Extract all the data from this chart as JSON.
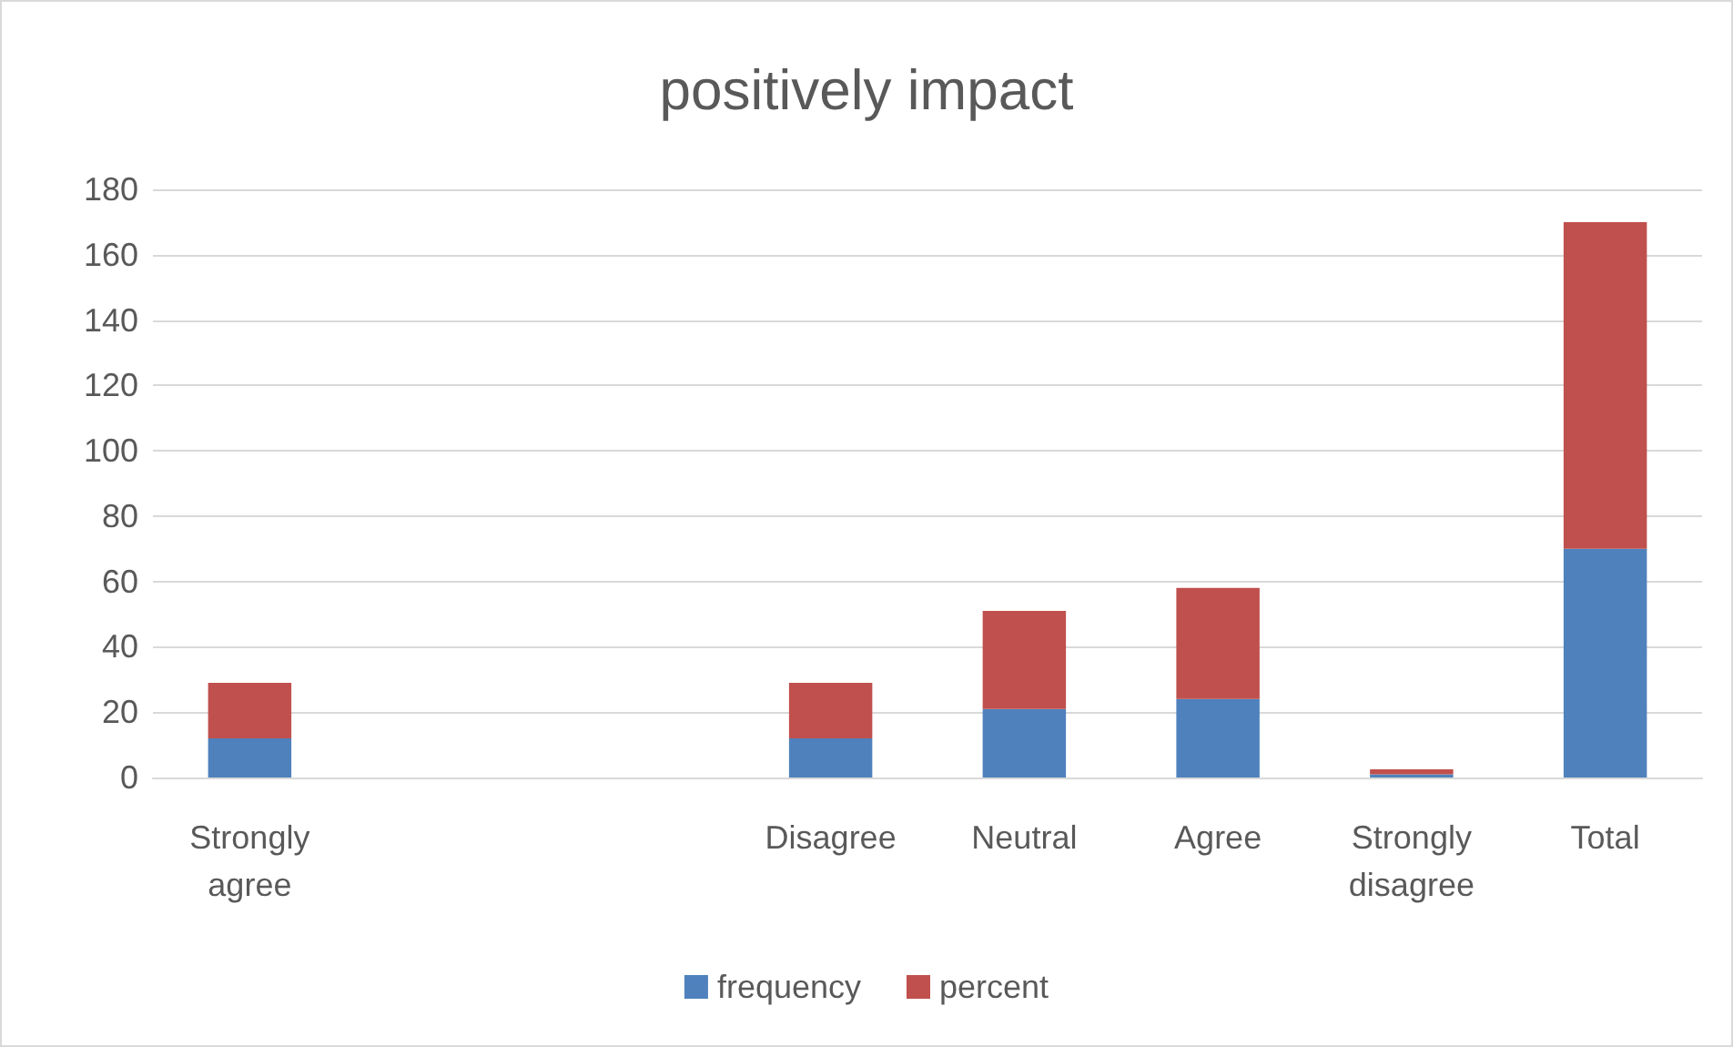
{
  "chart_data": {
    "type": "bar",
    "title": "positively impact",
    "stacked": true,
    "categories": [
      "Strongly agree",
      null,
      null,
      "Disagree",
      "Neutral",
      "Agree",
      "Strongly disagree",
      "Total"
    ],
    "series": [
      {
        "name": "frequency",
        "color": "#4f81bd",
        "values": [
          12,
          null,
          null,
          12,
          21,
          24,
          1,
          70
        ]
      },
      {
        "name": "percent",
        "color": "#c0504d",
        "values": [
          17,
          null,
          null,
          17,
          30,
          34,
          1.5,
          100
        ]
      }
    ],
    "ylim": [
      0,
      180
    ],
    "yticks": [
      0,
      20,
      40,
      60,
      80,
      100,
      120,
      140,
      160,
      180
    ],
    "grid": "y",
    "legend": "bottom"
  }
}
